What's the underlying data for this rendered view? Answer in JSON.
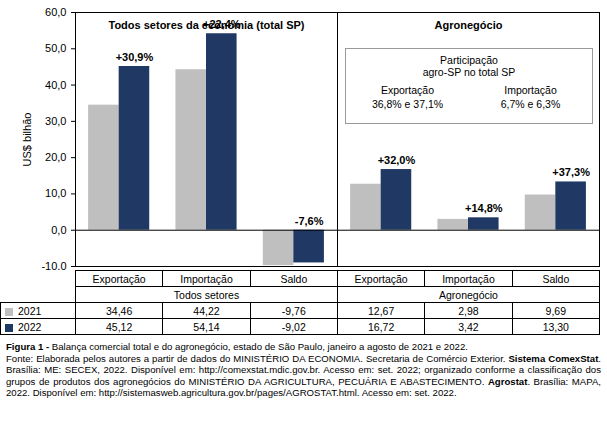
{
  "chart_data": {
    "type": "bar",
    "figure_label": "Figura 1 -",
    "title": "Balança comercial total e do agronegócio, estado de São Paulo, janeiro a agosto de 2021 e 2022.",
    "source": [
      {
        "text": "Fonte: Elaborada pelos autores a partir de dados do MINISTÉRIO DA ECONOMIA. Secretaria de Comércio Exterior. "
      },
      {
        "text": "Sistema ComexStat",
        "bold": true
      },
      {
        "text": ". Brasília: ME: SECEX, 2022. Disponível em: http://comexstat.mdic.gov.br. Acesso em: set. 2022; organizado conforme a classificação dos grupos de produtos dos agronegócios do MINISTÉRIO DA AGRICULTURA, PECUÁRIA E ABASTECIMENTO. "
      },
      {
        "text": "Agrostat",
        "bold": true
      },
      {
        "text": ". Brasília: MAPA, 2022. Disponível em: http://sistemasweb.agricultura.gov.br/pages/AGROSTAT.html. Acesso em: set. 2022."
      }
    ],
    "y_label": "US$ bilhão",
    "panel_titles": [
      "Todos setores da economia (total SP)",
      "Agronegócio"
    ],
    "categories": [
      "Exportação",
      "Importação",
      "Saldo",
      "Exportação",
      "Importação",
      "Saldo"
    ],
    "category_groups": [
      "Todos setores",
      "Todos setores",
      "Todos setores",
      "Agronegócio",
      "Agronegócio",
      "Agronegócio"
    ],
    "change_labels": [
      "+30,9%",
      "+22,4%",
      "-7,6%",
      "+32,0%",
      "+14,8%",
      "+37,3%"
    ],
    "series": [
      {
        "name": "2021",
        "color": "#bfbfbf",
        "values": [
          34.46,
          44.22,
          -9.76,
          12.67,
          2.98,
          9.69
        ],
        "value_labels": [
          "34,46",
          "44,22",
          "-9,76",
          "12,67",
          "2,98",
          "9,69"
        ]
      },
      {
        "name": "2022",
        "color": "#1f3864",
        "values": [
          45.12,
          54.14,
          -9.02,
          16.72,
          3.42,
          13.3
        ],
        "value_labels": [
          "45,12",
          "54,14",
          "-9,02",
          "16,72",
          "3,42",
          "13,30"
        ]
      }
    ],
    "inset_box": {
      "title_lines": [
        "Participação",
        "agro-SP no total SP"
      ],
      "items": [
        {
          "label": "Exportação",
          "text": "36,8% e 37,1%"
        },
        {
          "label": "Importação",
          "text": "6,7% e 6,3%"
        }
      ]
    },
    "ylim": [
      -10,
      60
    ],
    "yticks": [
      {
        "value": -10,
        "label": "-10,0"
      },
      {
        "value": 0,
        "label": "0,0"
      },
      {
        "value": 10,
        "label": "10,0"
      },
      {
        "value": 20,
        "label": "20,0"
      },
      {
        "value": 30,
        "label": "30,0"
      },
      {
        "value": 40,
        "label": "40,0"
      },
      {
        "value": 50,
        "label": "50,0"
      },
      {
        "value": 60,
        "label": "60,0"
      }
    ],
    "grid": false
  }
}
